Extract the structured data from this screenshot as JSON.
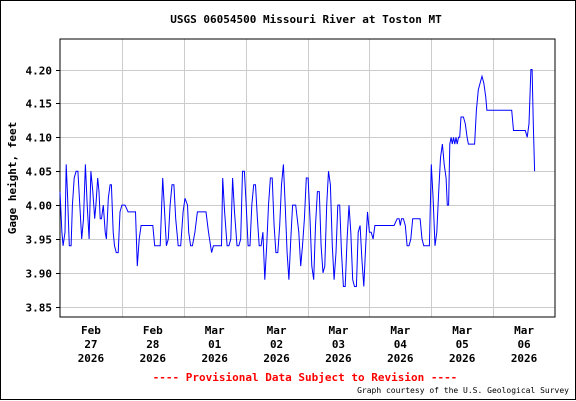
{
  "chart_data": {
    "type": "line",
    "title": "USGS 06054500 Missouri River at Toston MT",
    "ylabel": "Gage height, feet",
    "xlabel": "",
    "ylim": [
      3.835,
      4.245
    ],
    "xlim": [
      0,
      8
    ],
    "grid": true,
    "y_ticks": [
      "4.20",
      "4.15",
      "4.10",
      "4.05",
      "4.00",
      "3.95",
      "3.90",
      "3.85"
    ],
    "x_ticks": [
      {
        "month": "Feb",
        "day": "27",
        "year": "2026",
        "x": 0.5
      },
      {
        "month": "Feb",
        "day": "28",
        "year": "2026",
        "x": 1.5
      },
      {
        "month": "Mar",
        "day": "01",
        "year": "2026",
        "x": 2.5
      },
      {
        "month": "Mar",
        "day": "02",
        "year": "2026",
        "x": 3.5
      },
      {
        "month": "Mar",
        "day": "03",
        "year": "2026",
        "x": 4.5
      },
      {
        "month": "Mar",
        "day": "04",
        "year": "2026",
        "x": 5.5
      },
      {
        "month": "Mar",
        "day": "05",
        "year": "2026",
        "x": 6.5
      },
      {
        "month": "Mar",
        "day": "06",
        "year": "2026",
        "x": 7.5
      }
    ],
    "series": [
      {
        "color": "#0000ff",
        "points": [
          [
            0.0,
            4.02
          ],
          [
            0.03,
            3.96
          ],
          [
            0.05,
            3.94
          ],
          [
            0.08,
            3.96
          ],
          [
            0.1,
            4.06
          ],
          [
            0.12,
            4.02
          ],
          [
            0.15,
            3.94
          ],
          [
            0.18,
            3.94
          ],
          [
            0.2,
            4.0
          ],
          [
            0.23,
            4.04
          ],
          [
            0.26,
            4.05
          ],
          [
            0.29,
            4.05
          ],
          [
            0.32,
            4.0
          ],
          [
            0.35,
            3.95
          ],
          [
            0.38,
            3.98
          ],
          [
            0.41,
            4.06
          ],
          [
            0.44,
            4.0
          ],
          [
            0.47,
            3.95
          ],
          [
            0.5,
            4.05
          ],
          [
            0.53,
            4.02
          ],
          [
            0.56,
            3.98
          ],
          [
            0.58,
            4.0
          ],
          [
            0.61,
            4.04
          ],
          [
            0.63,
            4.02
          ],
          [
            0.65,
            3.98
          ],
          [
            0.67,
            3.98
          ],
          [
            0.7,
            4.0
          ],
          [
            0.73,
            3.96
          ],
          [
            0.75,
            3.95
          ],
          [
            0.78,
            4.01
          ],
          [
            0.81,
            4.03
          ],
          [
            0.83,
            4.03
          ],
          [
            0.86,
            3.96
          ],
          [
            0.88,
            3.94
          ],
          [
            0.91,
            3.93
          ],
          [
            0.94,
            3.93
          ],
          [
            0.97,
            3.99
          ],
          [
            1.0,
            4.0
          ],
          [
            1.05,
            4.0
          ],
          [
            1.1,
            3.99
          ],
          [
            1.15,
            3.99
          ],
          [
            1.22,
            3.99
          ],
          [
            1.25,
            3.91
          ],
          [
            1.28,
            3.95
          ],
          [
            1.31,
            3.97
          ],
          [
            1.38,
            3.97
          ],
          [
            1.45,
            3.97
          ],
          [
            1.5,
            3.97
          ],
          [
            1.53,
            3.94
          ],
          [
            1.56,
            3.94
          ],
          [
            1.62,
            3.94
          ],
          [
            1.66,
            4.04
          ],
          [
            1.69,
            3.99
          ],
          [
            1.72,
            3.94
          ],
          [
            1.75,
            3.95
          ],
          [
            1.78,
            4.0
          ],
          [
            1.81,
            4.03
          ],
          [
            1.84,
            4.03
          ],
          [
            1.87,
            3.98
          ],
          [
            1.91,
            3.94
          ],
          [
            1.95,
            3.94
          ],
          [
            1.99,
            3.99
          ],
          [
            2.02,
            4.01
          ],
          [
            2.06,
            4.0
          ],
          [
            2.08,
            3.96
          ],
          [
            2.11,
            3.94
          ],
          [
            2.14,
            3.94
          ],
          [
            2.18,
            3.96
          ],
          [
            2.22,
            3.99
          ],
          [
            2.3,
            3.99
          ],
          [
            2.36,
            3.99
          ],
          [
            2.4,
            3.96
          ],
          [
            2.45,
            3.93
          ],
          [
            2.48,
            3.94
          ],
          [
            2.52,
            3.94
          ],
          [
            2.58,
            3.94
          ],
          [
            2.61,
            3.94
          ],
          [
            2.63,
            4.04
          ],
          [
            2.66,
            3.99
          ],
          [
            2.7,
            3.94
          ],
          [
            2.73,
            3.94
          ],
          [
            2.76,
            3.95
          ],
          [
            2.79,
            4.04
          ],
          [
            2.82,
            3.99
          ],
          [
            2.86,
            3.94
          ],
          [
            2.89,
            3.94
          ],
          [
            2.92,
            3.95
          ],
          [
            2.95,
            4.05
          ],
          [
            2.98,
            4.05
          ],
          [
            3.01,
            4.0
          ],
          [
            3.04,
            3.94
          ],
          [
            3.07,
            3.94
          ],
          [
            3.1,
            4.0
          ],
          [
            3.13,
            4.03
          ],
          [
            3.16,
            4.03
          ],
          [
            3.19,
            3.98
          ],
          [
            3.22,
            3.94
          ],
          [
            3.25,
            3.94
          ],
          [
            3.28,
            3.96
          ],
          [
            3.31,
            3.89
          ],
          [
            3.34,
            3.94
          ],
          [
            3.37,
            4.0
          ],
          [
            3.4,
            4.04
          ],
          [
            3.43,
            4.04
          ],
          [
            3.46,
            3.97
          ],
          [
            3.49,
            3.93
          ],
          [
            3.52,
            3.93
          ],
          [
            3.55,
            3.97
          ],
          [
            3.58,
            4.03
          ],
          [
            3.61,
            4.06
          ],
          [
            3.64,
            4.0
          ],
          [
            3.67,
            3.93
          ],
          [
            3.7,
            3.89
          ],
          [
            3.73,
            3.95
          ],
          [
            3.76,
            4.0
          ],
          [
            3.81,
            4.0
          ],
          [
            3.86,
            3.96
          ],
          [
            3.89,
            3.91
          ],
          [
            3.92,
            3.94
          ],
          [
            3.95,
            3.98
          ],
          [
            3.98,
            4.04
          ],
          [
            4.01,
            4.04
          ],
          [
            4.04,
            3.98
          ],
          [
            4.07,
            3.91
          ],
          [
            4.1,
            3.89
          ],
          [
            4.13,
            3.97
          ],
          [
            4.16,
            4.02
          ],
          [
            4.19,
            4.02
          ],
          [
            4.22,
            3.94
          ],
          [
            4.25,
            3.9
          ],
          [
            4.28,
            3.91
          ],
          [
            4.31,
            4.0
          ],
          [
            4.34,
            4.05
          ],
          [
            4.37,
            4.03
          ],
          [
            4.4,
            3.94
          ],
          [
            4.43,
            3.89
          ],
          [
            4.46,
            3.93
          ],
          [
            4.49,
            4.0
          ],
          [
            4.52,
            4.0
          ],
          [
            4.55,
            3.93
          ],
          [
            4.58,
            3.88
          ],
          [
            4.61,
            3.88
          ],
          [
            4.64,
            3.95
          ],
          [
            4.67,
            4.0
          ],
          [
            4.7,
            3.96
          ],
          [
            4.73,
            3.89
          ],
          [
            4.76,
            3.88
          ],
          [
            4.79,
            3.88
          ],
          [
            4.82,
            3.96
          ],
          [
            4.85,
            3.97
          ],
          [
            4.88,
            3.92
          ],
          [
            4.91,
            3.88
          ],
          [
            4.94,
            3.94
          ],
          [
            4.97,
            3.99
          ],
          [
            5.0,
            3.96
          ],
          [
            5.03,
            3.96
          ],
          [
            5.06,
            3.95
          ],
          [
            5.09,
            3.97
          ],
          [
            5.13,
            3.97
          ],
          [
            5.2,
            3.97
          ],
          [
            5.3,
            3.97
          ],
          [
            5.4,
            3.97
          ],
          [
            5.45,
            3.98
          ],
          [
            5.48,
            3.98
          ],
          [
            5.5,
            3.97
          ],
          [
            5.52,
            3.98
          ],
          [
            5.55,
            3.98
          ],
          [
            5.58,
            3.97
          ],
          [
            5.61,
            3.94
          ],
          [
            5.64,
            3.94
          ],
          [
            5.67,
            3.95
          ],
          [
            5.7,
            3.98
          ],
          [
            5.76,
            3.98
          ],
          [
            5.82,
            3.98
          ],
          [
            5.85,
            3.95
          ],
          [
            5.88,
            3.94
          ],
          [
            5.94,
            3.94
          ],
          [
            5.97,
            3.94
          ],
          [
            6.0,
            4.06
          ],
          [
            6.03,
            4.01
          ],
          [
            6.06,
            3.94
          ],
          [
            6.09,
            3.96
          ],
          [
            6.12,
            4.02
          ],
          [
            6.15,
            4.07
          ],
          [
            6.18,
            4.09
          ],
          [
            6.21,
            4.06
          ],
          [
            6.24,
            4.04
          ],
          [
            6.26,
            4.0
          ],
          [
            6.28,
            4.0
          ],
          [
            6.3,
            4.09
          ],
          [
            6.32,
            4.1
          ],
          [
            6.34,
            4.09
          ],
          [
            6.36,
            4.1
          ],
          [
            6.38,
            4.09
          ],
          [
            6.4,
            4.1
          ],
          [
            6.42,
            4.09
          ],
          [
            6.44,
            4.1
          ],
          [
            6.46,
            4.1
          ],
          [
            6.48,
            4.13
          ],
          [
            6.5,
            4.13
          ],
          [
            6.52,
            4.13
          ],
          [
            6.55,
            4.12
          ],
          [
            6.58,
            4.1
          ],
          [
            6.6,
            4.09
          ],
          [
            6.65,
            4.09
          ],
          [
            6.7,
            4.09
          ],
          [
            6.73,
            4.14
          ],
          [
            6.76,
            4.17
          ],
          [
            6.79,
            4.18
          ],
          [
            6.82,
            4.19
          ],
          [
            6.85,
            4.18
          ],
          [
            6.88,
            4.16
          ],
          [
            6.9,
            4.14
          ],
          [
            6.95,
            4.14
          ],
          [
            7.05,
            4.14
          ],
          [
            7.15,
            4.14
          ],
          [
            7.25,
            4.14
          ],
          [
            7.3,
            4.14
          ],
          [
            7.33,
            4.11
          ],
          [
            7.4,
            4.11
          ],
          [
            7.48,
            4.11
          ],
          [
            7.52,
            4.11
          ],
          [
            7.55,
            4.1
          ],
          [
            7.58,
            4.12
          ],
          [
            7.61,
            4.2
          ],
          [
            7.63,
            4.2
          ],
          [
            7.65,
            4.12
          ],
          [
            7.67,
            4.05
          ]
        ]
      }
    ]
  },
  "footer": {
    "provisional": "---- Provisional Data Subject to Revision ----",
    "credit": "Graph courtesy of the U.S. Geological Survey"
  }
}
